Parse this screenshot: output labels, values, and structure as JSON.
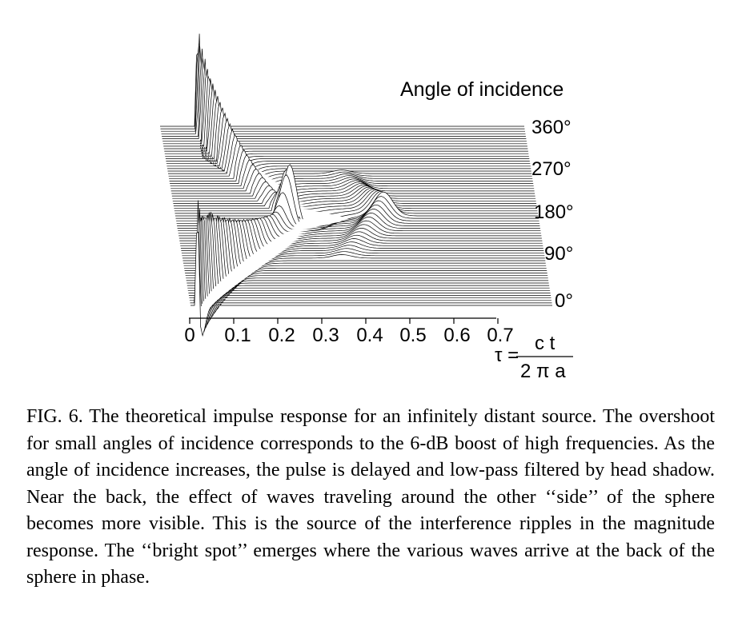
{
  "figure": {
    "legend_title": "Angle of incidence",
    "angle_labels": [
      "360°",
      "270°",
      "180°",
      "90°",
      "0°"
    ],
    "x_tick_labels": [
      "0",
      "0.1",
      "0.2",
      "0.3",
      "0.4",
      "0.5",
      "0.6",
      "0.7"
    ],
    "tau_symbol": "τ =",
    "tau_numerator": "c t",
    "tau_denominator": "2 π a"
  },
  "chart_data": {
    "type": "line",
    "title": "",
    "xlabel": "τ = ct / 2πa",
    "ylabel": "Angle of incidence",
    "x_ticks": [
      0,
      0.1,
      0.2,
      0.3,
      0.4,
      0.5,
      0.6,
      0.7
    ],
    "xlim": [
      0,
      0.7
    ],
    "angle_ticks_deg": [
      0,
      90,
      180,
      270,
      360
    ],
    "grid": false
  },
  "caption": {
    "text": "FIG. 6. The theoretical impulse response for an infinitely distant source. The overshoot for small angles of incidence corresponds to the 6-dB boost of high frequencies. As the angle of incidence increases, the pulse is delayed and low-pass filtered by head shadow. Near the back, the effect of waves traveling around the other ‘‘side’’ of the sphere becomes more visible. This is the source of the interference ripples in the magnitude response. The ‘‘bright spot’’ emerges where the various waves arrive at the back of the sphere in phase."
  }
}
